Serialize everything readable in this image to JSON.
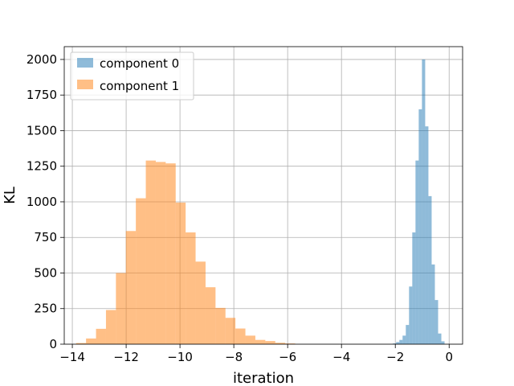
{
  "chart_data": {
    "type": "bar",
    "subtype": "histogram",
    "title": "",
    "xlabel": "iteration",
    "ylabel": "KL",
    "xlim": [
      -14.3,
      0.5
    ],
    "ylim": [
      0,
      2090
    ],
    "xticks": [
      -14,
      -12,
      -10,
      -8,
      -6,
      -4,
      -2,
      0
    ],
    "yticks": [
      0,
      250,
      500,
      750,
      1000,
      1250,
      1500,
      1750,
      2000
    ],
    "grid": true,
    "legend_position": "top-left",
    "series": [
      {
        "name": "component 0",
        "color": "#1f77b4",
        "opacity": 0.5,
        "bin_width": 0.12,
        "bin_starts": [
          -2.09,
          -1.97,
          -1.85,
          -1.73,
          -1.61,
          -1.49,
          -1.37,
          -1.25,
          -1.13,
          -1.01,
          -0.89,
          -0.77,
          -0.65,
          -0.53,
          -0.41,
          -0.29
        ],
        "values": [
          5,
          15,
          30,
          60,
          135,
          405,
          785,
          1290,
          1650,
          2000,
          1530,
          1040,
          560,
          310,
          75,
          20
        ]
      },
      {
        "name": "component 1",
        "color": "#ff7f0e",
        "opacity": 0.5,
        "bin_width": 0.37,
        "bin_starts": [
          -13.86,
          -13.49,
          -13.12,
          -12.75,
          -12.38,
          -12.01,
          -11.64,
          -11.27,
          -10.9,
          -10.53,
          -10.16,
          -9.79,
          -9.42,
          -9.05,
          -8.68,
          -8.31,
          -7.94,
          -7.57,
          -7.2,
          -6.83,
          -6.46,
          -6.09
        ],
        "values": [
          8,
          40,
          108,
          240,
          500,
          795,
          1025,
          1290,
          1280,
          1270,
          995,
          785,
          580,
          400,
          255,
          185,
          110,
          60,
          30,
          22,
          10,
          5
        ]
      }
    ]
  }
}
